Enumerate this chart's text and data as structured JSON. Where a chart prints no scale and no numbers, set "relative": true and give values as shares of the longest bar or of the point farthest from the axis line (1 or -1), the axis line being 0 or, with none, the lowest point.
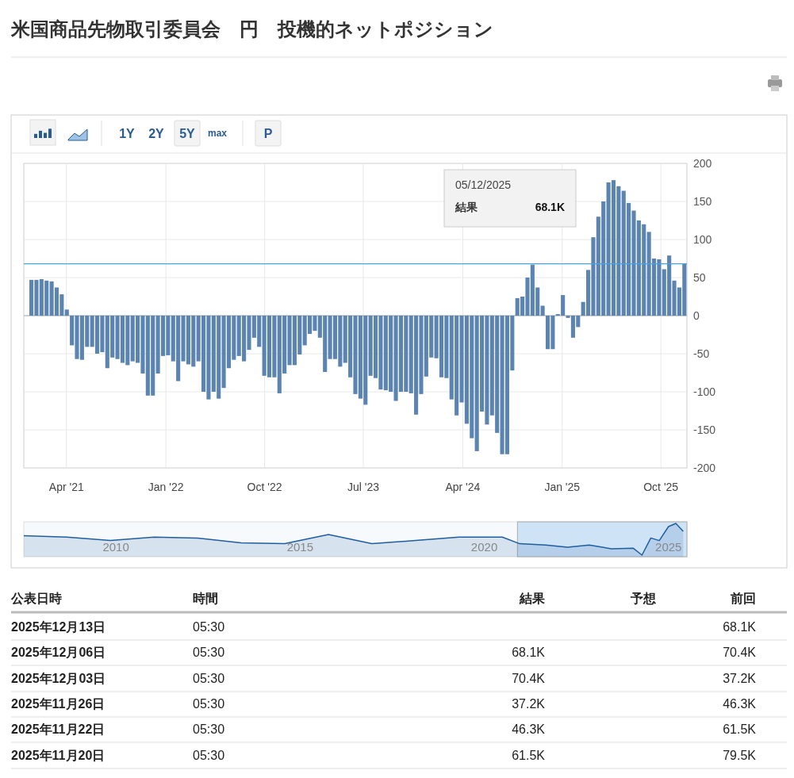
{
  "chart_data": [
    {
      "type": "bar",
      "title": "米国商品先物取引委員会　円　投機的ネットポジション",
      "grid": true,
      "x": [
        "2020-12-25",
        "2021-01-08",
        "2021-01-22",
        "2021-02-05",
        "2021-02-19",
        "2021-03-05",
        "2021-03-19",
        "2021-04-02",
        "2021-04-16",
        "2021-04-30",
        "2021-05-14",
        "2021-05-28",
        "2021-06-11",
        "2021-06-25",
        "2021-07-09",
        "2021-07-23",
        "2021-08-06",
        "2021-08-20",
        "2021-09-03",
        "2021-09-17",
        "2021-10-01",
        "2021-10-15",
        "2021-10-29",
        "2021-11-12",
        "2021-11-26",
        "2021-12-10",
        "2021-12-24",
        "2022-01-07",
        "2022-01-21",
        "2022-02-04",
        "2022-02-18",
        "2022-03-04",
        "2022-03-18",
        "2022-04-01",
        "2022-04-15",
        "2022-04-29",
        "2022-05-13",
        "2022-05-27",
        "2022-06-10",
        "2022-06-24",
        "2022-07-08",
        "2022-07-22",
        "2022-08-05",
        "2022-08-19",
        "2022-09-02",
        "2022-09-16",
        "2022-09-30",
        "2022-10-14",
        "2022-10-28",
        "2022-11-11",
        "2022-11-25",
        "2022-12-09",
        "2022-12-23",
        "2023-01-06",
        "2023-01-20",
        "2023-02-03",
        "2023-02-17",
        "2023-03-03",
        "2023-03-17",
        "2023-03-31",
        "2023-04-14",
        "2023-04-28",
        "2023-05-12",
        "2023-05-26",
        "2023-06-09",
        "2023-06-23",
        "2023-07-07",
        "2023-07-21",
        "2023-08-04",
        "2023-08-18",
        "2023-09-01",
        "2023-09-15",
        "2023-09-29",
        "2023-10-13",
        "2023-10-27",
        "2023-11-10",
        "2023-11-24",
        "2023-12-08",
        "2023-12-22",
        "2024-01-05",
        "2024-01-19",
        "2024-02-02",
        "2024-02-16",
        "2024-03-01",
        "2024-03-15",
        "2024-03-29",
        "2024-04-12",
        "2024-04-26",
        "2024-05-10",
        "2024-05-24",
        "2024-06-07",
        "2024-06-21",
        "2024-07-05",
        "2024-07-19",
        "2024-08-02",
        "2024-08-16",
        "2024-08-30",
        "2024-09-13",
        "2024-09-27",
        "2024-10-11",
        "2024-10-25",
        "2024-11-08",
        "2024-11-22",
        "2024-12-06",
        "2024-12-20",
        "2025-01-03",
        "2025-01-17",
        "2025-01-31",
        "2025-02-14",
        "2025-02-28",
        "2025-03-14",
        "2025-03-28",
        "2025-04-11",
        "2025-04-25",
        "2025-05-09",
        "2025-05-23",
        "2025-06-06",
        "2025-06-20",
        "2025-07-04",
        "2025-07-18",
        "2025-08-01",
        "2025-08-15",
        "2025-08-29",
        "2025-09-12",
        "2025-09-26",
        "2025-10-10",
        "2025-10-24",
        "2025-11-07",
        "2025-11-21",
        "2025-12-05"
      ],
      "series": [
        {
          "color": "#5b84b1",
          "values": [
            47,
            47,
            48,
            46,
            45,
            37,
            28,
            8,
            -39,
            -57,
            -58,
            -41,
            -41,
            -50,
            -48,
            -69,
            -55,
            -57,
            -62,
            -65,
            -60,
            -62,
            -76,
            -105,
            -105,
            -76,
            -53,
            -52,
            -60,
            -86,
            -60,
            -64,
            -67,
            -60,
            -100,
            -110,
            -100,
            -109,
            -95,
            -69,
            -58,
            -53,
            -60,
            -45,
            -29,
            -41,
            -79,
            -81,
            -81,
            -102,
            -76,
            -65,
            -65,
            -51,
            -39,
            -24,
            -20,
            -29,
            -74,
            -57,
            -57,
            -67,
            -62,
            -81,
            -103,
            -109,
            -117,
            -79,
            -82,
            -97,
            -98,
            -100,
            -112,
            -100,
            -100,
            -102,
            -130,
            -103,
            -80,
            -55,
            -56,
            -81,
            -82,
            -110,
            -131,
            -114,
            -142,
            -161,
            -178,
            -126,
            -143,
            -131,
            -154,
            -182,
            -182,
            -72,
            23,
            25,
            50,
            67,
            37,
            13,
            -44,
            -44,
            2,
            27,
            -3,
            -29,
            -15,
            18,
            60,
            103,
            130,
            150,
            175,
            178,
            170,
            164,
            148,
            138,
            125,
            120,
            110,
            75,
            74,
            61,
            79,
            46,
            37,
            68.1
          ]
        }
      ],
      "xlim": [
        "2020-12-04",
        "2025-12-12"
      ],
      "xticks": [
        {
          "value": "2021-04-01",
          "label": "Apr '21"
        },
        {
          "value": "2022-01-01",
          "label": "Jan '22"
        },
        {
          "value": "2022-10-01",
          "label": "Oct '22"
        },
        {
          "value": "2023-07-01",
          "label": "Jul '23"
        },
        {
          "value": "2024-04-01",
          "label": "Apr '24"
        },
        {
          "value": "2025-01-01",
          "label": "Jan '25"
        },
        {
          "value": "2025-10-01",
          "label": "Oct '25"
        }
      ],
      "ylim": [
        -200,
        200
      ],
      "yticks": [
        -200,
        -150,
        -100,
        -50,
        0,
        50,
        100,
        150,
        200
      ],
      "ref_lines": [
        {
          "axis": "y",
          "value": 68.1,
          "color": "#4aa3df"
        }
      ],
      "annotations": [
        "05/12/2025",
        "結果",
        "68.1K",
        "1Y",
        "2Y",
        "5Y",
        "max",
        "P"
      ]
    },
    {
      "type": "area",
      "relative": true,
      "tick_labels": "x",
      "x": [
        2007.5,
        2008.67,
        2009.85,
        2011.04,
        2012.22,
        2013.4,
        2014.58,
        2015.77,
        2016.95,
        2018.13,
        2019.31,
        2020.49,
        2020.96,
        2021.67,
        2022.26,
        2022.85,
        2023.45,
        2024.04,
        2024.28,
        2024.52,
        2024.75,
        2025.0,
        2025.2,
        2025.4
      ],
      "series": [
        {
          "color": "#1f5e9e",
          "values": [
            0.61,
            0.57,
            0.46,
            0.57,
            0.54,
            0.39,
            0.36,
            0.65,
            0.36,
            0.46,
            0.57,
            0.57,
            0.36,
            0.32,
            0.25,
            0.32,
            0.2,
            0.22,
            0,
            0.54,
            0.46,
            0.9,
            1,
            0.75
          ]
        }
      ],
      "xlim": [
        2007.5,
        2025.5
      ],
      "xticks": [
        2010,
        2015,
        2020,
        2025
      ],
      "bands": [
        {
          "axis": "x",
          "from": 2020.9,
          "to": 2025.5,
          "color": "#cfe3f7"
        }
      ]
    },
    {
      "type": "other",
      "annotations": [
        "公表日時",
        "時間",
        "結果",
        "予想",
        "前回",
        "2025年12月13日",
        "05:30",
        null,
        null,
        "68.1K",
        "2025年12月06日",
        "05:30",
        "68.1K",
        null,
        "70.4K",
        "2025年12月03日",
        "05:30",
        "70.4K",
        null,
        "37.2K",
        "2025年11月26日",
        "05:30",
        "37.2K",
        null,
        "46.3K",
        "2025年11月22日",
        "05:30",
        "46.3K",
        null,
        "61.5K",
        "2025年11月20日",
        "05:30",
        "61.5K",
        null,
        "79.5K"
      ]
    }
  ]
}
